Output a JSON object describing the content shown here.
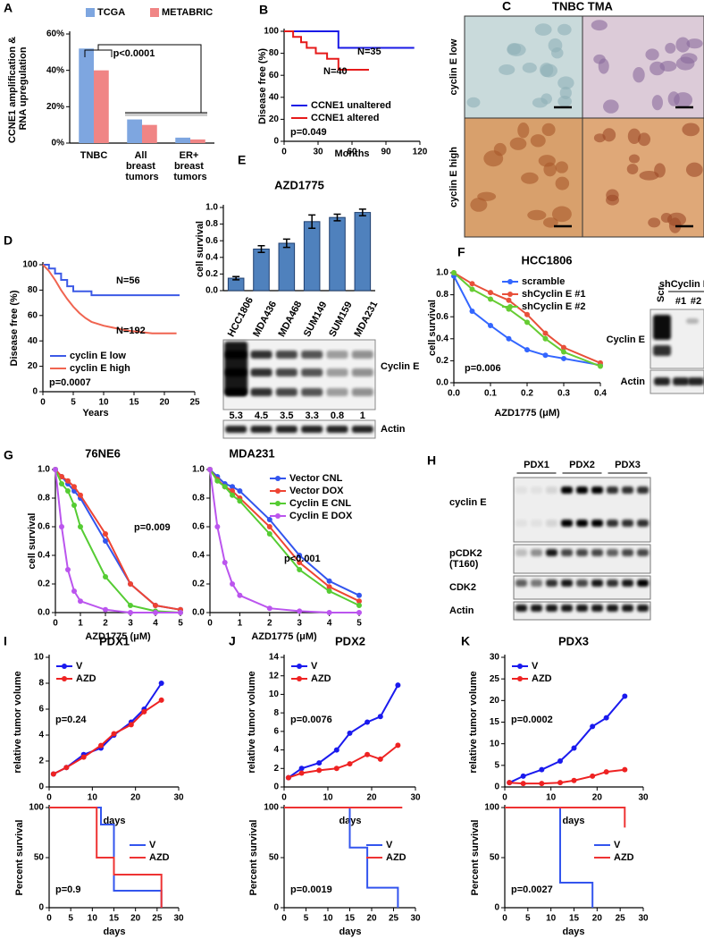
{
  "chart_data": [
    {
      "type": "bar",
      "panel": "A",
      "ylabel": "CCNE1 amplification & RNA upregulation",
      "categories": [
        "TNBC",
        "All breast tumors",
        "ER+ breast tumors"
      ],
      "series": [
        {
          "name": "TCGA",
          "color": "#7ea6e0",
          "values": [
            52,
            13,
            3
          ]
        },
        {
          "name": "METABRIC",
          "color": "#f08585",
          "values": [
            40,
            10,
            2
          ]
        }
      ],
      "ylim": [
        0,
        60
      ],
      "yticks": [
        {
          "value": 0,
          "label": "0%"
        },
        {
          "value": 20,
          "label": "20%"
        },
        {
          "value": 40,
          "label": "40%"
        },
        {
          "value": 60,
          "label": "60%"
        }
      ],
      "legend": "top",
      "annotations": [
        "p<0.0001"
      ]
    },
    {
      "type": "line",
      "panel": "B",
      "ylabel": "Disease free (%)",
      "xlabel": "Months",
      "series": [
        {
          "name": "CCNE1 unaltered",
          "color": "#1a1ae6",
          "x": [
            0,
            48,
            48,
            115
          ],
          "values": [
            100,
            100,
            85,
            85
          ]
        },
        {
          "name": "CCNE1 altered",
          "color": "#e61a1a",
          "x": [
            0,
            8,
            8,
            15,
            15,
            20,
            20,
            28,
            28,
            38,
            38,
            48,
            48,
            75
          ],
          "values": [
            100,
            100,
            95,
            95,
            90,
            90,
            85,
            85,
            80,
            80,
            75,
            75,
            65,
            65
          ]
        }
      ],
      "xlim": [
        0,
        120
      ],
      "xticks": [
        0,
        30,
        60,
        90,
        120
      ],
      "ylim": [
        0,
        100
      ],
      "yticks": [
        0,
        20,
        40,
        60,
        80,
        100
      ],
      "legend": "bottom-left",
      "annotations": [
        "N=35",
        "N=40",
        "p=0.049"
      ]
    },
    {
      "type": "line",
      "panel": "D",
      "ylabel": "Disease free (%)",
      "xlabel": "Years",
      "series": [
        {
          "name": "cyclin E low",
          "color": "#3c5ae6",
          "x": [
            0,
            1,
            1,
            2,
            2,
            3,
            3,
            4,
            4,
            5,
            5,
            8,
            8,
            22.5
          ],
          "values": [
            100,
            100,
            97,
            97,
            93,
            93,
            88,
            88,
            83,
            83,
            79,
            79,
            76,
            76
          ]
        },
        {
          "name": "cyclin E high",
          "color": "#f06450",
          "x": [
            0,
            1,
            2,
            3,
            4,
            5,
            6,
            7,
            8,
            10,
            12,
            14,
            16,
            18,
            22
          ],
          "values": [
            100,
            95,
            88,
            80,
            73,
            67,
            62,
            58,
            55,
            52,
            50,
            48,
            47,
            46,
            46
          ]
        }
      ],
      "xlim": [
        0,
        25
      ],
      "xticks": [
        0,
        5,
        10,
        15,
        20,
        25
      ],
      "ylim": [
        0,
        100
      ],
      "yticks": [
        0,
        20,
        40,
        60,
        80,
        100
      ],
      "legend": "bottom-left",
      "annotations": [
        "N=56",
        "N=192",
        "p=0.0007"
      ]
    },
    {
      "type": "bar",
      "panel": "E",
      "title": "AZD1775",
      "ylabel": "cell survival",
      "categories": [
        "HCC1806",
        "MDA436",
        "MDA468",
        "SUM149",
        "SUM159",
        "MDA231"
      ],
      "values": [
        0.15,
        0.5,
        0.57,
        0.83,
        0.88,
        0.94
      ],
      "errors": [
        0.02,
        0.04,
        0.05,
        0.08,
        0.04,
        0.04
      ],
      "color": "#4f81bd",
      "ylim": [
        0,
        1
      ],
      "yticks": [
        {
          "value": 0,
          "label": "0.0"
        },
        0.2,
        0.4,
        0.6,
        0.8,
        {
          "value": 1,
          "label": "1.0"
        }
      ]
    },
    {
      "type": "line",
      "panel": "F",
      "title": "HCC1806",
      "ylabel": "cell survival",
      "xlabel": "AZD1775 (μM)",
      "markers": true,
      "x": [
        0,
        0.05,
        0.1,
        0.15,
        0.2,
        0.25,
        0.3,
        0.4
      ],
      "series": [
        {
          "name": "scramble",
          "color": "#3366ff",
          "values": [
            0.97,
            0.65,
            0.52,
            0.4,
            0.3,
            0.25,
            0.22,
            0.16
          ]
        },
        {
          "name": "shCyclin E #1",
          "color": "#e8503a",
          "values": [
            1,
            0.9,
            0.82,
            0.75,
            0.62,
            0.45,
            0.32,
            0.18
          ]
        },
        {
          "name": "shCyclin E #2",
          "color": "#66cc33",
          "values": [
            1,
            0.85,
            0.76,
            0.67,
            0.55,
            0.4,
            0.28,
            0.15
          ]
        }
      ],
      "xlim": [
        0,
        0.4
      ],
      "xticks": [
        {
          "value": 0,
          "label": "0.0"
        },
        0.1,
        0.2,
        0.3,
        0.4
      ],
      "ylim": [
        0,
        1
      ],
      "yticks": [
        {
          "value": 0,
          "label": "0.0"
        },
        0.2,
        0.4,
        0.6,
        0.8,
        {
          "value": 1,
          "label": "1.0"
        }
      ],
      "legend": "top-right",
      "annotations": [
        "p=0.006"
      ]
    },
    {
      "type": "line",
      "panel": "G",
      "title": "76NE6",
      "ylabel": "cell survival",
      "xlabel": "AZD1775 (μM)",
      "markers": true,
      "x": [
        0,
        0.25,
        0.5,
        0.75,
        1,
        2,
        3,
        4,
        5
      ],
      "series": [
        {
          "color": "#3355ee",
          "values": [
            1,
            0.95,
            0.9,
            0.85,
            0.8,
            0.5,
            0.2,
            0.05,
            0.02
          ]
        },
        {
          "color": "#ee4433",
          "values": [
            1,
            0.95,
            0.92,
            0.88,
            0.82,
            0.55,
            0.2,
            0.05,
            0.02
          ]
        },
        {
          "color": "#55cc33",
          "values": [
            1,
            0.9,
            0.85,
            0.75,
            0.6,
            0.25,
            0.05,
            0.01,
            0
          ]
        },
        {
          "color": "#bb55ee",
          "values": [
            1,
            0.6,
            0.3,
            0.15,
            0.08,
            0.02,
            0,
            0,
            0
          ]
        }
      ],
      "xlim": [
        0,
        5
      ],
      "xticks": [
        0,
        1,
        2,
        3,
        4,
        5
      ],
      "ylim": [
        0,
        1
      ],
      "yticks": [
        {
          "value": 0,
          "label": "0.0"
        },
        0.2,
        0.4,
        0.6,
        0.8,
        {
          "value": 1,
          "label": "1.0"
        }
      ],
      "annotations": [
        "p=0.009"
      ]
    },
    {
      "type": "line",
      "title": "MDA231",
      "xlabel": "AZD1775 (μM)",
      "markers": true,
      "x": [
        0,
        0.25,
        0.5,
        0.75,
        1,
        2,
        3,
        4,
        5
      ],
      "series": [
        {
          "name": "Vector CNL",
          "color": "#3355ee",
          "values": [
            1,
            0.95,
            0.9,
            0.88,
            0.85,
            0.65,
            0.4,
            0.22,
            0.12
          ]
        },
        {
          "name": "Vector DOX",
          "color": "#ee4433",
          "values": [
            1,
            0.93,
            0.88,
            0.85,
            0.8,
            0.6,
            0.35,
            0.18,
            0.08
          ]
        },
        {
          "name": "Cyclin E CNL",
          "color": "#55cc33",
          "values": [
            1,
            0.92,
            0.88,
            0.82,
            0.78,
            0.55,
            0.3,
            0.15,
            0.05
          ]
        },
        {
          "name": "Cyclin E DOX",
          "color": "#bb55ee",
          "values": [
            1,
            0.6,
            0.35,
            0.2,
            0.12,
            0.03,
            0.01,
            0,
            0
          ]
        }
      ],
      "xlim": [
        0,
        5
      ],
      "xticks": [
        0,
        1,
        2,
        3,
        4,
        5
      ],
      "ylim": [
        0,
        1
      ],
      "yticks": [
        {
          "value": 0,
          "label": "0.0"
        },
        0.2,
        0.4,
        0.6,
        0.8,
        {
          "value": 1,
          "label": "1.0"
        }
      ],
      "legend": "top-right",
      "annotations": [
        "p<0.001"
      ]
    },
    {
      "type": "line",
      "panel": "I",
      "title": "PDX1",
      "ylabel": "relative tumor volume",
      "xlabel": "days",
      "markers": true,
      "x": [
        1,
        4,
        8,
        12,
        15,
        19,
        22,
        26
      ],
      "series": [
        {
          "name": "V",
          "color": "#1a1aee",
          "values": [
            1,
            1.5,
            2.5,
            3,
            4,
            5,
            6,
            8
          ]
        },
        {
          "name": "AZD",
          "color": "#ee2222",
          "values": [
            1,
            1.5,
            2.3,
            3.2,
            4.1,
            4.8,
            5.8,
            6.7
          ]
        }
      ],
      "xlim": [
        0,
        30
      ],
      "xticks": [
        0,
        10,
        20,
        30
      ],
      "ylim": [
        0,
        10
      ],
      "yticks": [
        0,
        2,
        4,
        6,
        8,
        10
      ],
      "legend": "top-left",
      "annotations": [
        "p=0.24"
      ]
    },
    {
      "type": "line",
      "ylabel": "Percent survival",
      "xlabel": "days",
      "series": [
        {
          "name": "V",
          "color": "#3355ee",
          "x": [
            0,
            12,
            12,
            15,
            15,
            26,
            26
          ],
          "values": [
            100,
            100,
            83,
            83,
            17,
            17,
            0
          ]
        },
        {
          "name": "AZD",
          "color": "#ee3333",
          "x": [
            0,
            11,
            11,
            15,
            15,
            26,
            26
          ],
          "values": [
            100,
            100,
            50,
            50,
            33,
            33,
            0
          ]
        }
      ],
      "xlim": [
        0,
        30
      ],
      "xticks": [
        0,
        5,
        10,
        15,
        20,
        25,
        30
      ],
      "ylim": [
        0,
        100
      ],
      "yticks": [
        0,
        50,
        100
      ],
      "legend": "center-right",
      "annotations": [
        "p=0.9"
      ]
    },
    {
      "type": "line",
      "panel": "J",
      "title": "PDX2",
      "ylabel": "relative tumor volume",
      "xlabel": "days",
      "markers": true,
      "x": [
        1,
        4,
        8,
        12,
        15,
        19,
        22,
        26
      ],
      "series": [
        {
          "name": "V",
          "color": "#1a1aee",
          "values": [
            1,
            2,
            2.6,
            4,
            5.8,
            7,
            7.6,
            11
          ]
        },
        {
          "name": "AZD",
          "color": "#ee2222",
          "values": [
            1,
            1.5,
            1.8,
            2,
            2.5,
            3.5,
            3,
            4.5
          ]
        }
      ],
      "xlim": [
        0,
        30
      ],
      "xticks": [
        0,
        10,
        20,
        30
      ],
      "ylim": [
        0,
        14
      ],
      "yticks": [
        0,
        2,
        4,
        6,
        8,
        10,
        12,
        14
      ],
      "legend": "top-left",
      "annotations": [
        "p=0.0076"
      ]
    },
    {
      "type": "line",
      "ylabel": "Percent survival",
      "xlabel": "days",
      "series": [
        {
          "name": "V",
          "color": "#3355ee",
          "x": [
            0,
            15,
            15,
            19,
            19,
            26,
            26
          ],
          "values": [
            100,
            100,
            60,
            60,
            20,
            20,
            0
          ]
        },
        {
          "name": "AZD",
          "color": "#ee3333",
          "x": [
            0,
            27
          ],
          "values": [
            100,
            100
          ]
        }
      ],
      "xlim": [
        0,
        30
      ],
      "xticks": [
        0,
        5,
        10,
        15,
        20,
        25,
        30
      ],
      "ylim": [
        0,
        100
      ],
      "yticks": [
        0,
        50,
        100
      ],
      "legend": "center-right",
      "annotations": [
        "p=0.0019"
      ]
    },
    {
      "type": "line",
      "panel": "K",
      "title": "PDX3",
      "ylabel": "relative tumor volume",
      "xlabel": "days",
      "markers": true,
      "x": [
        1,
        4,
        8,
        12,
        15,
        19,
        22,
        26
      ],
      "series": [
        {
          "name": "V",
          "color": "#1a1aee",
          "values": [
            1,
            2.5,
            4,
            6,
            9,
            14,
            16,
            21
          ]
        },
        {
          "name": "AZD",
          "color": "#ee2222",
          "values": [
            1,
            0.8,
            0.8,
            1,
            1.5,
            2.5,
            3.5,
            4
          ]
        }
      ],
      "xlim": [
        0,
        30
      ],
      "xticks": [
        0,
        10,
        20,
        30
      ],
      "ylim": [
        0,
        30
      ],
      "yticks": [
        0,
        5,
        10,
        15,
        20,
        25,
        30
      ],
      "legend": "top-left",
      "annotations": [
        "p=0.0002"
      ]
    },
    {
      "type": "line",
      "ylabel": "Percent survival",
      "xlabel": "days",
      "series": [
        {
          "name": "V",
          "color": "#3355ee",
          "x": [
            0,
            12,
            12,
            19,
            19
          ],
          "values": [
            100,
            100,
            25,
            25,
            0
          ]
        },
        {
          "name": "AZD",
          "color": "#ee3333",
          "x": [
            0,
            26,
            26
          ],
          "values": [
            100,
            100,
            80
          ]
        }
      ],
      "xlim": [
        0,
        30
      ],
      "xticks": [
        0,
        5,
        10,
        15,
        20,
        25,
        30
      ],
      "ylim": [
        0,
        100
      ],
      "yticks": [
        0,
        50,
        100
      ],
      "legend": "center-right",
      "annotations": [
        "p=0.0027"
      ]
    }
  ],
  "images": {
    "panel": "C",
    "title": "TNBC TMA",
    "rows": [
      "cyclin E low",
      "cyclin E high"
    ]
  },
  "blots": [
    {
      "rows": [
        "Cyclin E",
        "Actin"
      ],
      "values": [
        5.3,
        4.5,
        3.5,
        3.3,
        0.8,
        1
      ]
    },
    {
      "header": "shCyclin E",
      "columns": [
        "Scr.",
        "#1",
        "#2"
      ],
      "rows": [
        "Cyclin E",
        "Actin"
      ]
    },
    {
      "panel": "H",
      "columns": [
        "PDX1",
        "PDX2",
        "PDX3"
      ],
      "rows": [
        "cyclin E",
        "pCDK2 (T160)",
        "CDK2",
        "Actin"
      ]
    }
  ]
}
